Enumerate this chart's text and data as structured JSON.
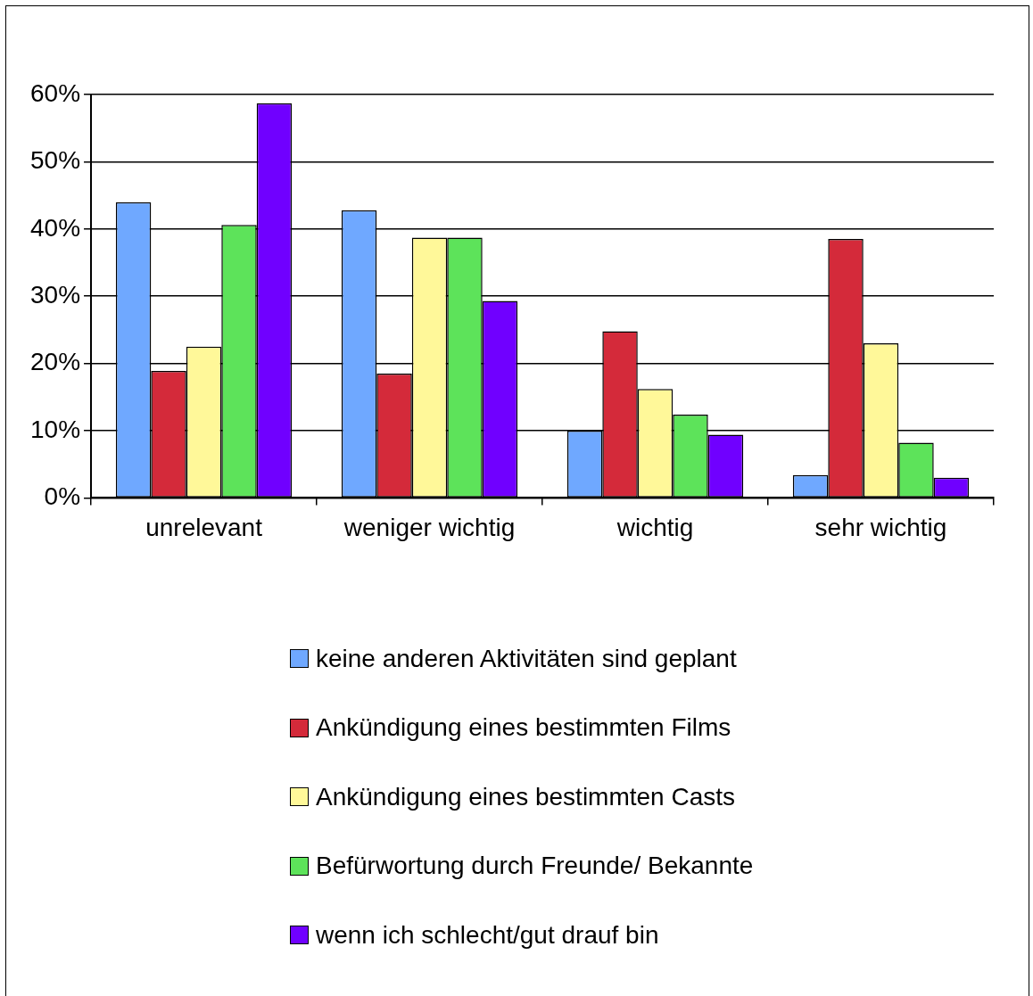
{
  "chart_data": {
    "type": "bar",
    "categories": [
      "unrelevant",
      "weniger wichtig",
      "wichtig",
      "sehr wichtig"
    ],
    "series": [
      {
        "name": "keine anderen Aktivitäten sind geplant",
        "color": "#6fa8ff",
        "values": [
          44,
          42.8,
          10,
          3.4
        ]
      },
      {
        "name": "Ankündigung eines bestimmten Films",
        "color": "#d42a3a",
        "values": [
          18.9,
          18.5,
          24.8,
          38.5
        ]
      },
      {
        "name": "Ankündigung eines bestimmten Casts",
        "color": "#fff899",
        "values": [
          22.5,
          38.7,
          16.2,
          23
        ]
      },
      {
        "name": "Befürwortung durch Freunde/ Bekannte",
        "color": "#5de35a",
        "values": [
          40.6,
          38.7,
          12.4,
          8.2
        ]
      },
      {
        "name": "wenn ich schlecht/gut drauf bin",
        "color": "#7000ff",
        "values": [
          58.7,
          29.3,
          9.4,
          3
        ]
      }
    ],
    "ylim": [
      0,
      60
    ],
    "yticks": [
      {
        "value": 0,
        "label": "0%"
      },
      {
        "value": 10,
        "label": "10%"
      },
      {
        "value": 20,
        "label": "20%"
      },
      {
        "value": 30,
        "label": "30%"
      },
      {
        "value": 40,
        "label": "40%"
      },
      {
        "value": 50,
        "label": "50%"
      },
      {
        "value": 60,
        "label": "60%"
      }
    ],
    "grid": "y",
    "legend": "bottom"
  }
}
